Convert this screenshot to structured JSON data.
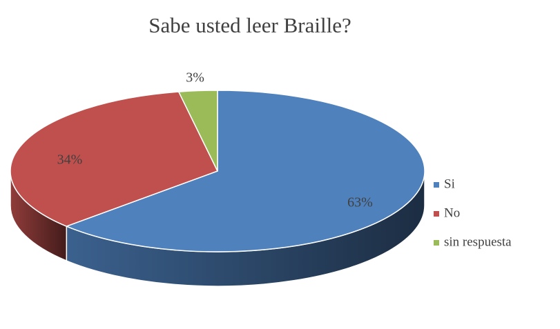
{
  "chart_data": {
    "type": "pie3d",
    "title": "Sabe usted leer Braille?",
    "categories": [
      "Si",
      "No",
      "sin respuesta"
    ],
    "values": [
      63,
      34,
      3
    ],
    "value_labels": [
      "63%",
      "34%",
      "3%"
    ],
    "colors": [
      "#4f81bd",
      "#c0504d",
      "#9bbb59"
    ],
    "legend": "right"
  }
}
